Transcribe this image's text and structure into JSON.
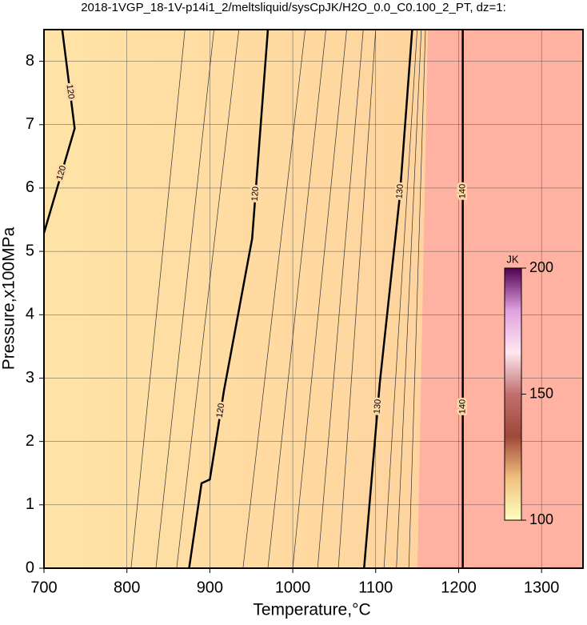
{
  "chart_data": {
    "type": "contour",
    "title": "2018-1VGP_18-1V-p14i1_2/meltsliquid/sysCpJK/H2O_0.0_C0.100_2_PT, dz=1:",
    "x_label": "Temperature,°C",
    "y_label": "Pressure,x100MPa",
    "xlim": [
      700,
      1350
    ],
    "ylim": [
      0,
      8.5
    ],
    "xticks": [
      700,
      800,
      900,
      1000,
      1100,
      1200,
      1300
    ],
    "yticks": [
      0,
      1,
      2,
      3,
      4,
      5,
      6,
      7,
      8
    ],
    "grid": true,
    "contours": [
      {
        "level": 120,
        "x": [
          700,
          737,
          722
        ],
        "y": [
          5.29,
          6.94,
          8.5
        ]
      },
      {
        "level": 120,
        "x": [
          875,
          890,
          900,
          917,
          951,
          970
        ],
        "y": [
          0,
          1.34,
          1.4,
          2.8,
          5.2,
          8.5
        ]
      },
      {
        "level": 130,
        "x": [
          1086,
          1105,
          1129,
          1144
        ],
        "y": [
          0,
          2.93,
          5.86,
          8.5
        ]
      },
      {
        "level": 140,
        "x": [
          1205,
          1205
        ],
        "y": [
          0,
          8.5
        ]
      }
    ],
    "minor_contours": [
      {
        "x": [
          805,
          870
        ],
        "y": [
          0,
          8.5
        ]
      },
      {
        "x": [
          835,
          905
        ],
        "y": [
          0,
          8.5
        ]
      },
      {
        "x": [
          860,
          935
        ],
        "y": [
          0,
          8.5
        ]
      },
      {
        "x": [
          940,
          1015
        ],
        "y": [
          0,
          8.5
        ]
      },
      {
        "x": [
          970,
          1040
        ],
        "y": [
          0,
          8.5
        ]
      },
      {
        "x": [
          1000,
          1065
        ],
        "y": [
          0,
          8.5
        ]
      },
      {
        "x": [
          1030,
          1085
        ],
        "y": [
          0,
          8.5
        ]
      },
      {
        "x": [
          1055,
          1100
        ],
        "y": [
          0,
          8.5
        ]
      },
      {
        "x": [
          1110,
          1150
        ],
        "y": [
          0,
          8.5
        ]
      },
      {
        "x": [
          1125,
          1155
        ],
        "y": [
          0,
          8.5
        ]
      },
      {
        "x": [
          1140,
          1160
        ],
        "y": [
          0,
          8.5
        ]
      }
    ],
    "colorbar": {
      "label": "JK",
      "lim": [
        100,
        200
      ],
      "ticks": [
        100,
        150,
        200
      ],
      "colors": [
        "#ffffc0",
        "#f0c080",
        "#a04838",
        "#c07070",
        "#ffe8f0",
        "#e0a0e0",
        "#500050"
      ]
    }
  }
}
